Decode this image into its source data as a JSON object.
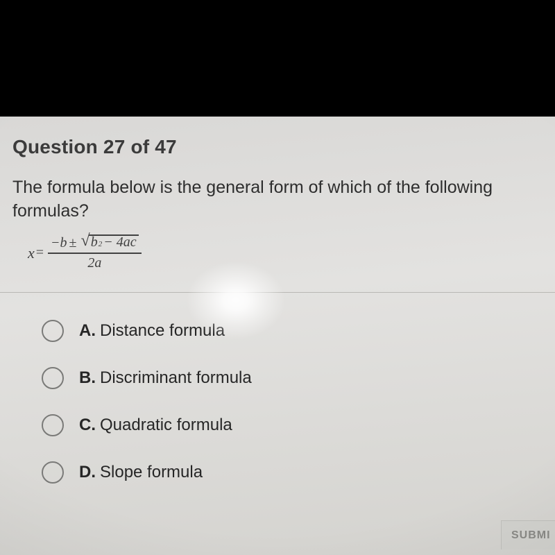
{
  "header": {
    "label": "Question 27 of 47"
  },
  "question": {
    "text": "The formula below is the general form of which of the following formulas?"
  },
  "formula": {
    "lhs": "x",
    "eq": "=",
    "num_prefix": "−b",
    "pm": "±",
    "sqrt_inner_b": "b",
    "sqrt_inner_exp": "2",
    "sqrt_inner_rest": " − 4ac",
    "den": "2a"
  },
  "options": [
    {
      "letter": "A.",
      "text": "Distance formula"
    },
    {
      "letter": "B.",
      "text": "Discriminant formula"
    },
    {
      "letter": "C.",
      "text": "Quadratic formula"
    },
    {
      "letter": "D.",
      "text": "Slope formula"
    }
  ],
  "submit": {
    "label": "SUBMI"
  }
}
